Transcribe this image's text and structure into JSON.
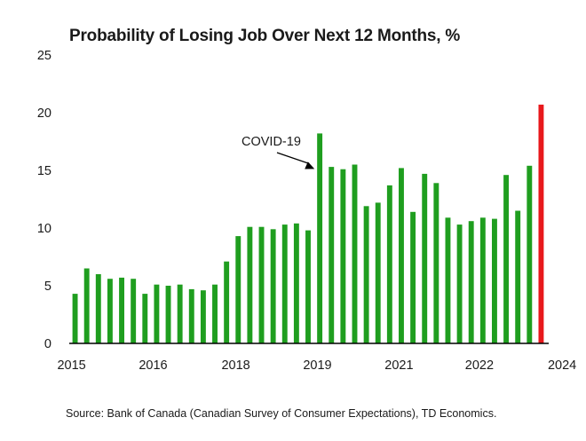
{
  "chart_data": {
    "type": "bar",
    "title": "Probability of Losing Job Over Next 12 Months, %",
    "source": "Source: Bank of Canada (Canadian Survey of Consumer Expectations), TD Economics.",
    "xlabel": "",
    "ylabel": "",
    "ylim": [
      0,
      25
    ],
    "y_ticks": [
      0,
      5,
      10,
      15,
      20,
      25
    ],
    "x_tick_labels": [
      "2015",
      "2016",
      "2018",
      "2019",
      "2021",
      "2022",
      "2024"
    ],
    "x_tick_positions": [
      -0.3,
      6.7,
      13.8,
      20.8,
      27.8,
      34.7,
      41.8
    ],
    "grid": false,
    "legend": "none",
    "annotation": {
      "text": "COVID-19",
      "target_index": 22
    },
    "colors": {
      "bar": "#1f9e1f",
      "highlight": "#e8181c",
      "axis": "#000000",
      "text": "#1a1a1a"
    },
    "highlight_index": 45,
    "values": [
      4.3,
      6.5,
      6.0,
      5.6,
      5.7,
      5.6,
      4.3,
      5.1,
      5.0,
      5.1,
      4.7,
      4.6,
      5.1,
      7.1,
      9.3,
      10.1,
      10.1,
      9.9,
      10.3,
      10.4,
      9.8,
      18.2,
      15.3,
      15.1,
      15.5,
      11.9,
      12.2,
      13.7,
      15.2,
      11.4,
      14.7,
      13.9,
      10.9,
      10.3,
      10.6,
      10.9,
      10.8,
      14.6,
      11.5,
      15.4,
      20.7
    ]
  }
}
